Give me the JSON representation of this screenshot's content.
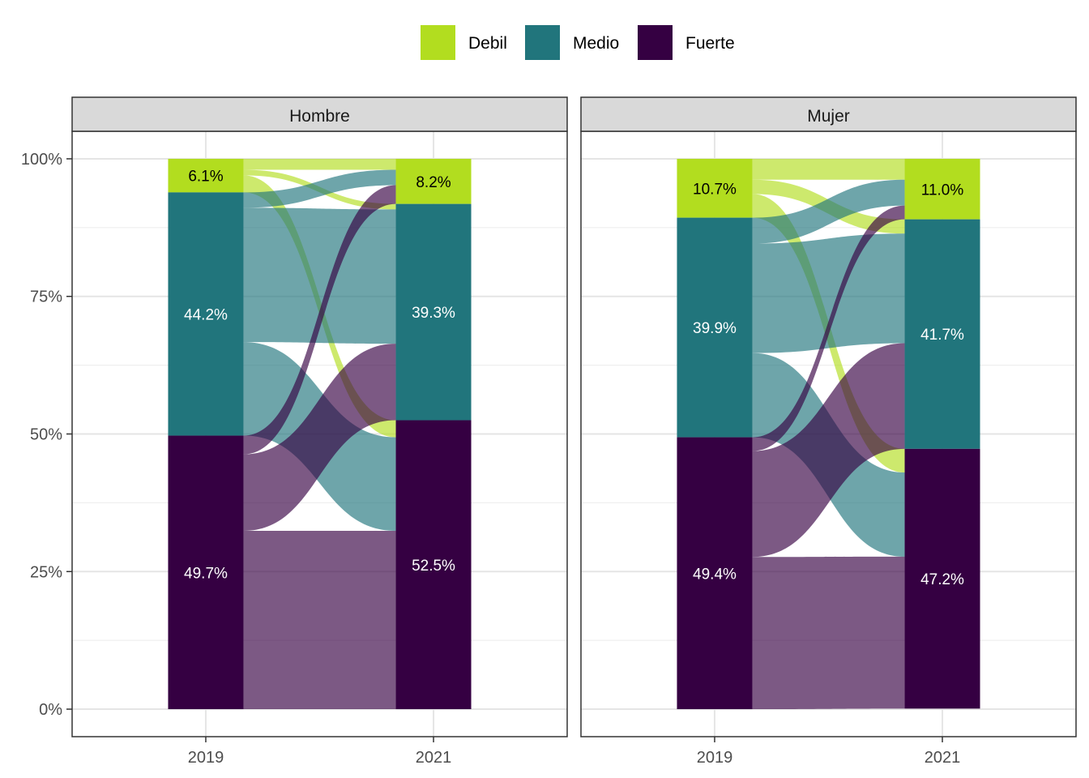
{
  "chart_data": {
    "type": "alluvial",
    "legend": {
      "position": "top",
      "entries": [
        {
          "key": "Debil",
          "label": "Debil",
          "color": "#B2DD1F"
        },
        {
          "key": "Medio",
          "label": "Medio",
          "color": "#21757C"
        },
        {
          "key": "Fuerte",
          "label": "Fuerte",
          "color": "#350042"
        }
      ]
    },
    "x": [
      "2019",
      "2021"
    ],
    "y_ticks": [
      {
        "value": 0,
        "label": "0%"
      },
      {
        "value": 25,
        "label": "25%"
      },
      {
        "value": 50,
        "label": "50%"
      },
      {
        "value": 75,
        "label": "75%"
      },
      {
        "value": 100,
        "label": "100%"
      }
    ],
    "ylim": [
      -5,
      105
    ],
    "grid": true,
    "stack_order_top_to_bottom": [
      "Debil",
      "Medio",
      "Fuerte"
    ],
    "panels": [
      {
        "facet": "Hombre",
        "bars": {
          "2019": [
            {
              "category": "Debil",
              "value": 6.1,
              "label": "6.1%"
            },
            {
              "category": "Medio",
              "value": 44.2,
              "label": "44.2%"
            },
            {
              "category": "Fuerte",
              "value": 49.7,
              "label": "49.7%"
            }
          ],
          "2021": [
            {
              "category": "Debil",
              "value": 8.2,
              "label": "8.2%"
            },
            {
              "category": "Medio",
              "value": 39.3,
              "label": "39.3%"
            },
            {
              "category": "Fuerte",
              "value": 52.5,
              "label": "52.5%"
            }
          ]
        },
        "flows": [
          {
            "from": "Debil",
            "to": "Debil",
            "value": 2.0
          },
          {
            "from": "Debil",
            "to": "Medio",
            "value": 1.0
          },
          {
            "from": "Debil",
            "to": "Fuerte",
            "value": 3.1
          },
          {
            "from": "Medio",
            "to": "Debil",
            "value": 2.8
          },
          {
            "from": "Medio",
            "to": "Medio",
            "value": 24.4
          },
          {
            "from": "Medio",
            "to": "Fuerte",
            "value": 17.0
          },
          {
            "from": "Fuerte",
            "to": "Debil",
            "value": 3.4
          },
          {
            "from": "Fuerte",
            "to": "Medio",
            "value": 13.9
          },
          {
            "from": "Fuerte",
            "to": "Fuerte",
            "value": 32.4
          }
        ]
      },
      {
        "facet": "Mujer",
        "bars": {
          "2019": [
            {
              "category": "Debil",
              "value": 10.7,
              "label": "10.7%"
            },
            {
              "category": "Medio",
              "value": 39.9,
              "label": "39.9%"
            },
            {
              "category": "Fuerte",
              "value": 49.4,
              "label": "49.4%"
            }
          ],
          "2021": [
            {
              "category": "Debil",
              "value": 11.0,
              "label": "11.0%"
            },
            {
              "category": "Medio",
              "value": 41.7,
              "label": "41.7%"
            },
            {
              "category": "Fuerte",
              "value": 47.2,
              "label": "47.2%"
            }
          ]
        },
        "flows": [
          {
            "from": "Debil",
            "to": "Debil",
            "value": 3.8
          },
          {
            "from": "Debil",
            "to": "Medio",
            "value": 2.6
          },
          {
            "from": "Debil",
            "to": "Fuerte",
            "value": 4.3
          },
          {
            "from": "Medio",
            "to": "Debil",
            "value": 4.7
          },
          {
            "from": "Medio",
            "to": "Medio",
            "value": 19.9
          },
          {
            "from": "Medio",
            "to": "Fuerte",
            "value": 15.3
          },
          {
            "from": "Fuerte",
            "to": "Debil",
            "value": 2.5
          },
          {
            "from": "Fuerte",
            "to": "Medio",
            "value": 19.2
          },
          {
            "from": "Fuerte",
            "to": "Fuerte",
            "value": 27.6
          }
        ]
      }
    ]
  }
}
